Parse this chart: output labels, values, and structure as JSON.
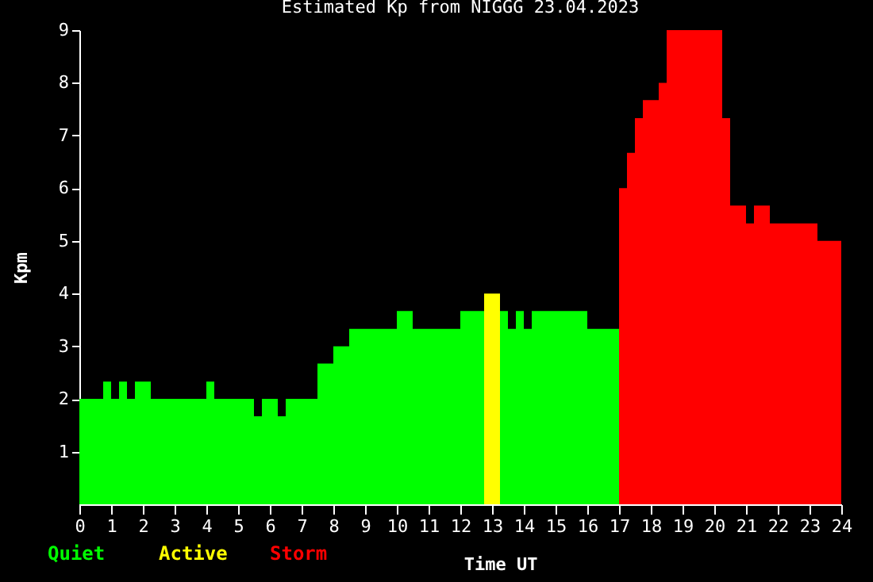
{
  "chart_data": {
    "type": "histogram",
    "title": "Estimated Kp from NIGGG 23.04.2023",
    "xlabel": "Time UT",
    "ylabel": "Kpm",
    "bins": [
      0,
      0.25,
      0.5,
      0.75,
      1,
      1.25,
      1.5,
      1.75,
      2,
      2.25,
      2.5,
      2.75,
      3,
      3.25,
      3.5,
      3.75,
      4,
      4.25,
      4.5,
      4.75,
      5,
      5.25,
      5.5,
      5.75,
      6,
      6.25,
      6.5,
      6.75,
      7,
      7.25,
      7.5,
      7.75,
      8,
      8.25,
      8.5,
      8.75,
      9,
      9.25,
      9.5,
      9.75,
      10,
      10.25,
      10.5,
      10.75,
      11,
      11.25,
      11.5,
      11.75,
      12,
      12.25,
      12.5,
      12.75,
      13,
      13.25,
      13.5,
      13.75,
      14,
      14.25,
      14.5,
      14.75,
      15,
      15.25,
      15.5,
      15.75,
      16,
      16.25,
      16.5,
      16.75,
      17,
      17.25,
      17.5,
      17.75,
      18,
      18.25,
      18.5,
      18.75,
      19,
      19.25,
      19.5,
      19.75,
      20,
      20.25,
      20.5,
      20.75,
      21,
      21.25,
      21.5,
      21.75,
      22,
      22.25,
      22.5,
      22.75,
      23,
      23.25,
      23.5,
      23.75,
      24
    ],
    "series": [
      {
        "name": "Quiet",
        "color": "#00ff00",
        "values": [
          2,
          2,
          2,
          2.33,
          2,
          2.33,
          2,
          2.33,
          2.33,
          2,
          2,
          2,
          2,
          2,
          2,
          2,
          2.33,
          2,
          2,
          2,
          2,
          2,
          1.67,
          2,
          2,
          1.67,
          2,
          2,
          2,
          2,
          2.67,
          2.67,
          3,
          3,
          3.33,
          3.33,
          3.33,
          3.33,
          3.33,
          3.33,
          3.67,
          3.67,
          3.33,
          3.33,
          3.33,
          3.33,
          3.33,
          3.33,
          3.67,
          3.67,
          3.67,
          null,
          null,
          3.67,
          3.33,
          3.67,
          3.33,
          3.67,
          3.67,
          3.67,
          3.67,
          3.67,
          3.67,
          3.67,
          3.33,
          3.33,
          3.33,
          3.33,
          null,
          null,
          null,
          null,
          null,
          null,
          null,
          null,
          null,
          null,
          null,
          null,
          null,
          null,
          null,
          null,
          null,
          null,
          null,
          null,
          null,
          null,
          null,
          null,
          null,
          null,
          null,
          null
        ]
      },
      {
        "name": "Active",
        "color": "#ffff00",
        "values": [
          null,
          null,
          null,
          null,
          null,
          null,
          null,
          null,
          null,
          null,
          null,
          null,
          null,
          null,
          null,
          null,
          null,
          null,
          null,
          null,
          null,
          null,
          null,
          null,
          null,
          null,
          null,
          null,
          null,
          null,
          null,
          null,
          null,
          null,
          null,
          null,
          null,
          null,
          null,
          null,
          null,
          null,
          null,
          null,
          null,
          null,
          null,
          null,
          null,
          null,
          null,
          4,
          4,
          null,
          null,
          null,
          null,
          null,
          null,
          null,
          null,
          null,
          null,
          null,
          null,
          null,
          null,
          null,
          null,
          null,
          null,
          null,
          null,
          null,
          null,
          null,
          null,
          null,
          null,
          null,
          null,
          null,
          null,
          null,
          null,
          null,
          null,
          null,
          null,
          null,
          null,
          null,
          null,
          null,
          null,
          null
        ]
      },
      {
        "name": "Storm",
        "color": "#ff0000",
        "values": [
          null,
          null,
          null,
          null,
          null,
          null,
          null,
          null,
          null,
          null,
          null,
          null,
          null,
          null,
          null,
          null,
          null,
          null,
          null,
          null,
          null,
          null,
          null,
          null,
          null,
          null,
          null,
          null,
          null,
          null,
          null,
          null,
          null,
          null,
          null,
          null,
          null,
          null,
          null,
          null,
          null,
          null,
          null,
          null,
          null,
          null,
          null,
          null,
          null,
          null,
          null,
          null,
          null,
          null,
          null,
          null,
          null,
          null,
          null,
          null,
          null,
          null,
          null,
          null,
          null,
          null,
          null,
          null,
          6,
          6.67,
          7.33,
          7.67,
          7.67,
          8,
          9,
          9,
          9,
          9,
          9,
          9,
          9,
          7.33,
          5.67,
          5.67,
          5.33,
          5.67,
          5.67,
          5.33,
          5.33,
          5.33,
          5.33,
          5.33,
          5.33,
          5,
          5,
          5
        ]
      }
    ],
    "xlim": [
      0,
      24
    ],
    "xticks": [
      0,
      1,
      2,
      3,
      4,
      5,
      6,
      7,
      8,
      9,
      10,
      11,
      12,
      13,
      14,
      15,
      16,
      17,
      18,
      19,
      20,
      21,
      22,
      23,
      24
    ],
    "ylim": [
      0,
      9
    ],
    "yticks": [
      1,
      2,
      3,
      4,
      5,
      6,
      7,
      8,
      9
    ],
    "legend": "bottom left"
  }
}
